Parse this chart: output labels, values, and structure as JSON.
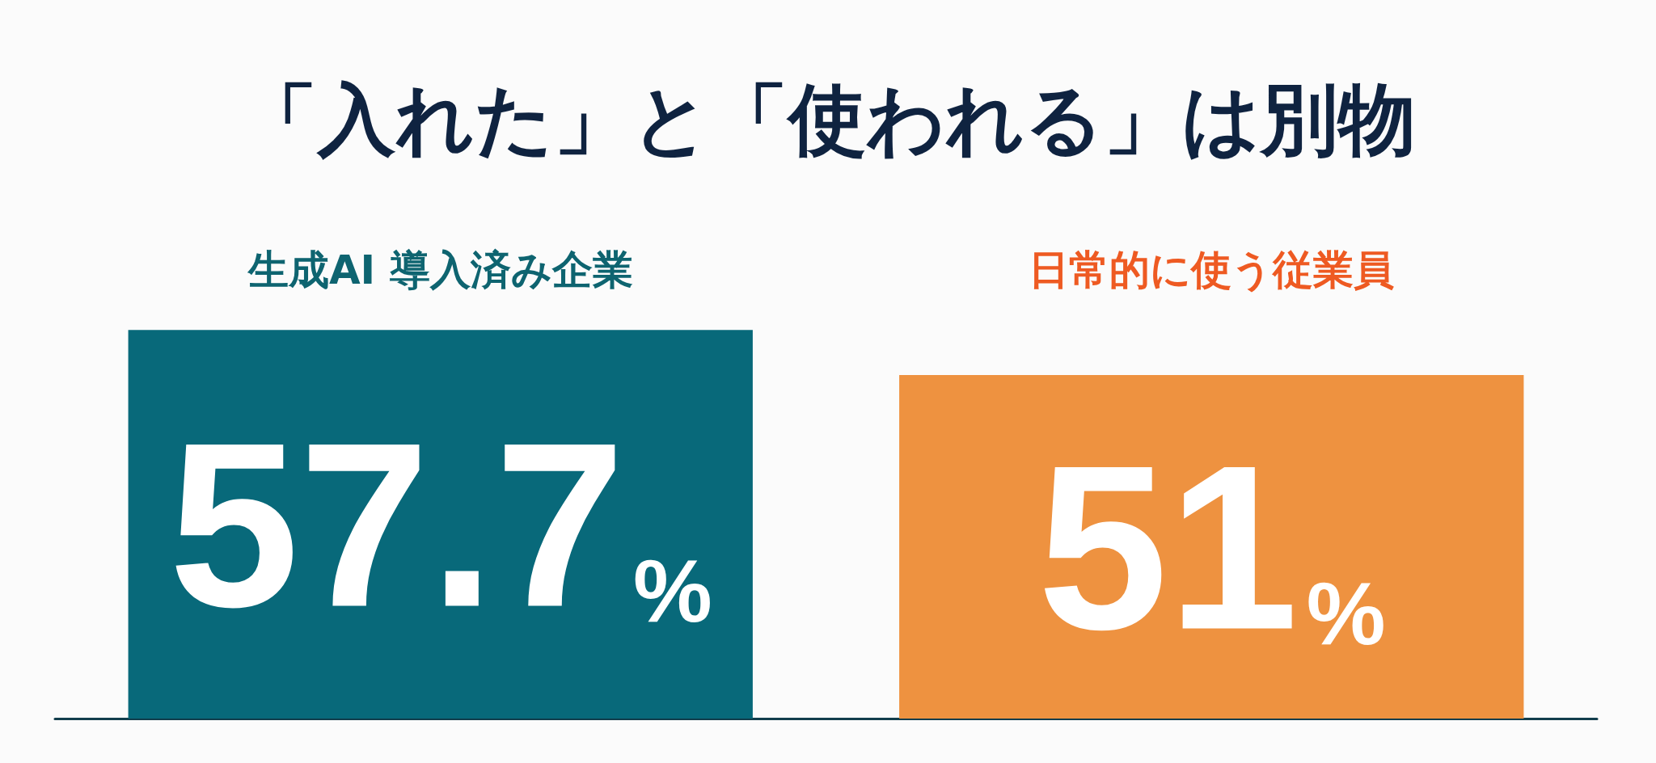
{
  "chart_data": {
    "type": "bar",
    "title": "「入れた」と「使われる」は別物",
    "categories": [
      "生成AI 導入済み企業",
      "日常的に使う従業員"
    ],
    "values": [
      57.7,
      51
    ],
    "colors": [
      "#08697a",
      "#ee9240"
    ],
    "value_labels": [
      "57.7%",
      "51%"
    ]
  }
}
